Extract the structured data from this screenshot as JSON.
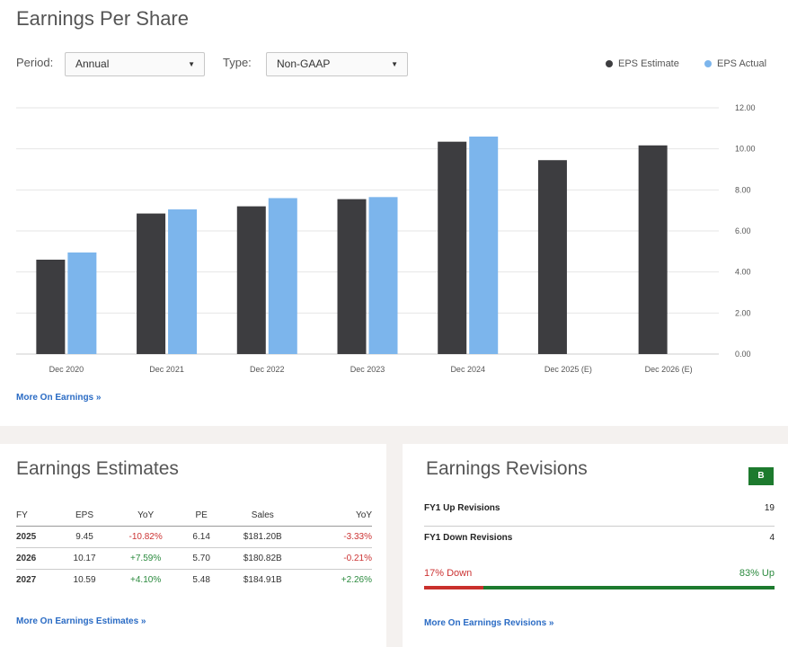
{
  "page": {
    "title": "Earnings Per Share"
  },
  "controls": {
    "period_label": "Period:",
    "period_value": "Annual",
    "type_label": "Type:",
    "type_value": "Non-GAAP"
  },
  "legend": [
    {
      "label": "EPS Estimate",
      "color": "#3d3d40"
    },
    {
      "label": "EPS Actual",
      "color": "#7cb5ec"
    }
  ],
  "chart_data": {
    "type": "bar",
    "categories": [
      "Dec 2020",
      "Dec 2021",
      "Dec 2022",
      "Dec 2023",
      "Dec 2024",
      "Dec 2025 (E)",
      "Dec 2026 (E)"
    ],
    "series": [
      {
        "name": "EPS Estimate",
        "color": "#3d3d40",
        "values": [
          4.6,
          6.85,
          7.2,
          7.55,
          10.35,
          9.45,
          10.17
        ]
      },
      {
        "name": "EPS Actual",
        "color": "#7cb5ec",
        "values": [
          4.95,
          7.05,
          7.6,
          7.65,
          10.6,
          null,
          null
        ]
      }
    ],
    "yticks": [
      "0.00",
      "2.00",
      "4.00",
      "6.00",
      "8.00",
      "10.00",
      "12.00"
    ],
    "ylim": [
      0,
      12
    ],
    "grid": true,
    "y_axis_side": "right",
    "legend_position": "top-right"
  },
  "links": {
    "more_earnings": "More On Earnings »",
    "more_estimates": "More On Earnings Estimates »",
    "more_revisions": "More On Earnings Revisions »"
  },
  "estimates": {
    "title": "Earnings Estimates",
    "columns": [
      "FY",
      "EPS",
      "YoY",
      "PE",
      "Sales",
      "YoY"
    ],
    "rows": [
      {
        "fy": "2025",
        "eps": "9.45",
        "yoy": "-10.82%",
        "yoy_sign": "neg",
        "pe": "6.14",
        "sales": "$181.20B",
        "sales_yoy": "-3.33%",
        "sales_yoy_sign": "neg"
      },
      {
        "fy": "2026",
        "eps": "10.17",
        "yoy": "+7.59%",
        "yoy_sign": "pos",
        "pe": "5.70",
        "sales": "$180.82B",
        "sales_yoy": "-0.21%",
        "sales_yoy_sign": "neg"
      },
      {
        "fy": "2027",
        "eps": "10.59",
        "yoy": "+4.10%",
        "yoy_sign": "pos",
        "pe": "5.48",
        "sales": "$184.91B",
        "sales_yoy": "+2.26%",
        "sales_yoy_sign": "pos"
      }
    ]
  },
  "revisions": {
    "title": "Earnings Revisions",
    "grade": "B",
    "rows": [
      {
        "label": "FY1 Up Revisions",
        "value": "19"
      },
      {
        "label": "FY1 Down Revisions",
        "value": "4"
      }
    ],
    "down_label": "17% Down",
    "up_label": "83% Up",
    "down_fraction": 0.17,
    "down_color": "#c9302c",
    "up_color": "#1d7a2e"
  }
}
